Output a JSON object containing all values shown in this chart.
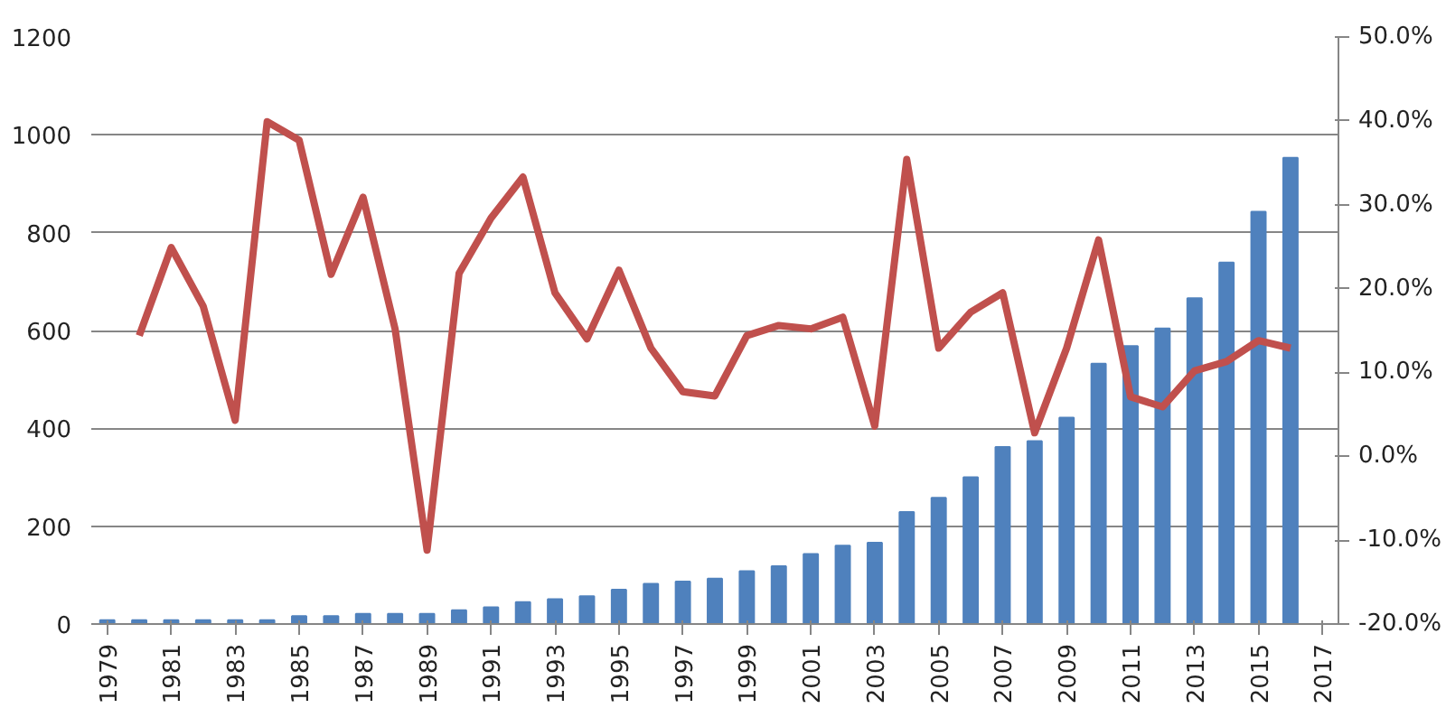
{
  "chart_data": {
    "type": "bar",
    "categories": [
      "1979",
      null,
      "1981",
      null,
      "1983",
      null,
      "1985",
      null,
      "1987",
      null,
      "1989",
      null,
      "1991",
      null,
      "1993",
      null,
      "1995",
      null,
      "1997",
      null,
      "1999",
      null,
      "2001",
      null,
      "2003",
      null,
      "2005",
      null,
      "2007",
      null,
      "2009",
      null,
      "2011",
      null,
      "2013",
      null,
      "2015",
      null,
      "2017"
    ],
    "series": [
      {
        "color": "#4f81bd",
        "values": [
          8,
          8,
          8,
          8,
          8,
          8,
          16,
          16,
          21,
          21,
          21,
          28,
          34,
          45,
          51,
          57,
          70,
          82,
          87,
          93,
          108,
          118,
          143,
          160,
          166,
          229,
          258,
          300,
          362,
          374,
          422,
          532,
          568,
          604,
          666,
          739,
          843,
          953,
          null
        ]
      },
      {
        "type": "line",
        "axis": "y2",
        "color": "#c0504d",
        "values": [
          null,
          14.4,
          24.9,
          17.9,
          4.3,
          39.9,
          37.7,
          21.7,
          30.9,
          15.2,
          -11.2,
          21.8,
          28.4,
          33.3,
          19.5,
          14.0,
          22.2,
          12.9,
          7.7,
          7.2,
          14.4,
          15.6,
          15.2,
          16.6,
          3.6,
          35.4,
          12.9,
          17.2,
          19.5,
          2.8,
          12.9,
          25.8,
          7.1,
          5.9,
          10.2,
          11.3,
          13.8,
          12.9,
          null
        ]
      }
    ],
    "ylim": [
      0,
      1200
    ],
    "yticks": [
      0,
      200,
      400,
      600,
      800,
      1000,
      1200
    ],
    "y2lim": [
      -20,
      50
    ],
    "y2ticks": [
      {
        "value": -20,
        "label": "-20.0%"
      },
      {
        "value": -10,
        "label": "-10.0%"
      },
      {
        "value": 0,
        "label": "0.0%"
      },
      {
        "value": 10,
        "label": "10.0%"
      },
      {
        "value": 20,
        "label": "20.0%"
      },
      {
        "value": 30,
        "label": "30.0%"
      },
      {
        "value": 40,
        "label": "40.0%"
      },
      {
        "value": 50,
        "label": "50.0%"
      }
    ],
    "grid": "y",
    "marker": "none",
    "line_style": "solid"
  }
}
